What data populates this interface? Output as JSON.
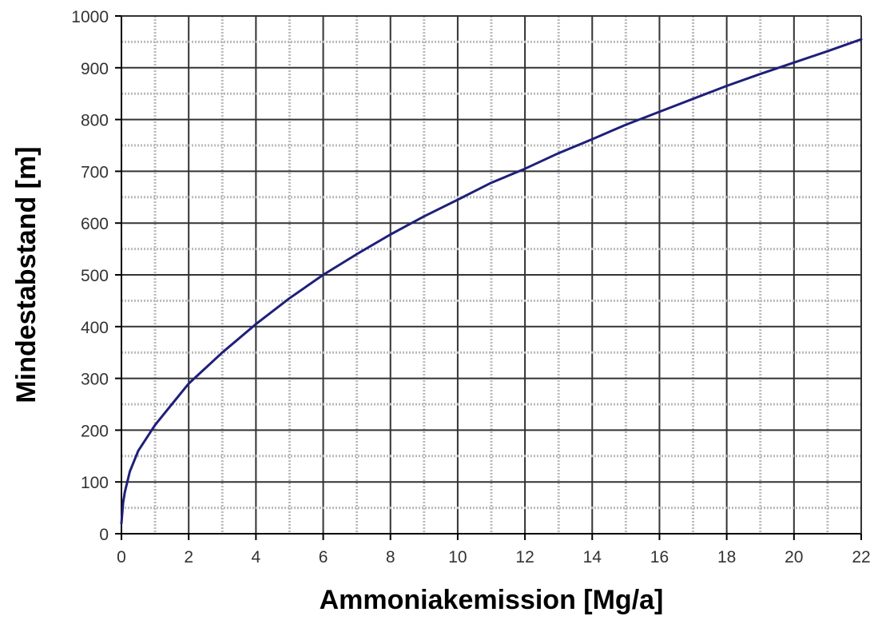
{
  "chart_data": {
    "type": "line",
    "title": "",
    "xlabel": "Ammoniakemission [Mg/a]",
    "ylabel": "Mindestabstand [m]",
    "xlim": [
      0,
      22
    ],
    "ylim": [
      0,
      1000
    ],
    "xticks": [
      "0",
      "2",
      "4",
      "6",
      "8",
      "10",
      "12",
      "14",
      "16",
      "18",
      "20",
      "22"
    ],
    "yticks": [
      "0",
      "100",
      "200",
      "300",
      "400",
      "500",
      "600",
      "700",
      "800",
      "900",
      "1000"
    ],
    "grid": true,
    "legend": "none",
    "colors": {
      "line": "#1f1f7a",
      "grid_major": "#333333",
      "grid_minor": "#bbbbbb",
      "axis": "#000000"
    },
    "series": [
      {
        "x": [
          0,
          0.05,
          0.1,
          0.25,
          0.5,
          1,
          1.5,
          2,
          3,
          4,
          5,
          6,
          7,
          8,
          9,
          10,
          11,
          12,
          13,
          14,
          15,
          16,
          17,
          18,
          19,
          20,
          21,
          22
        ],
        "values": [
          20,
          60,
          80,
          120,
          160,
          210,
          250,
          290,
          350,
          405,
          455,
          500,
          540,
          578,
          613,
          645,
          678,
          705,
          735,
          762,
          790,
          815,
          840,
          865,
          888,
          910,
          932,
          955
        ]
      }
    ]
  }
}
